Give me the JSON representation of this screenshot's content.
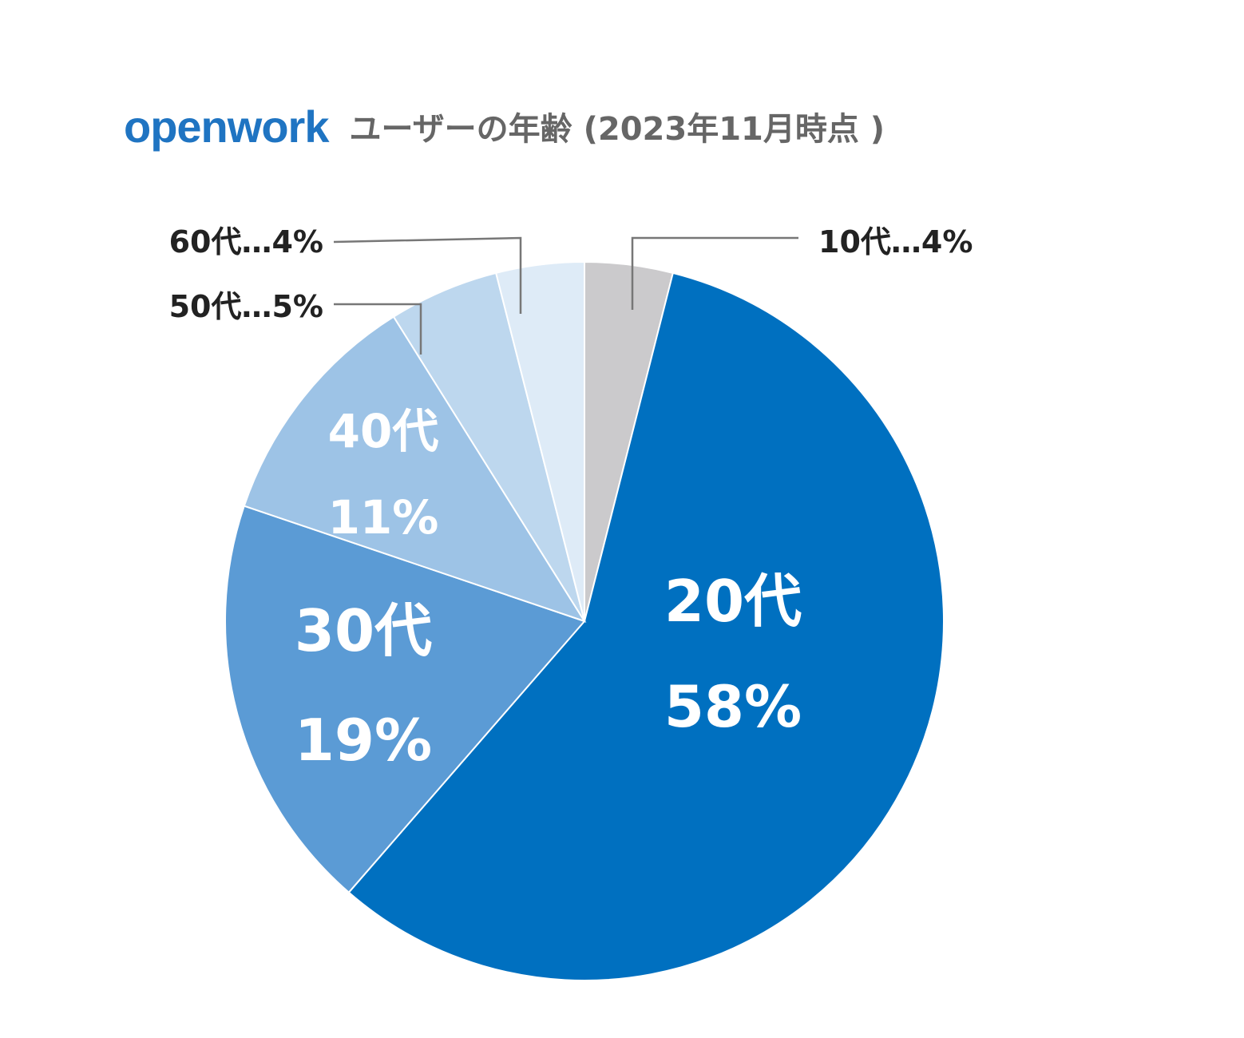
{
  "header": {
    "brand": "openwork",
    "title": "ユーザーの年齢 (2023年11月時点 )"
  },
  "colors": {
    "brand": "#1f74c2",
    "leader_line": "#777777",
    "outer_label_text": "#222222",
    "inner_label_text": "#ffffff"
  },
  "chart_data": {
    "type": "pie",
    "title": "ユーザーの年齢 (2023年11月時点 )",
    "start": "12 o'clock, clockwise",
    "slices": [
      {
        "key": "10",
        "category": "10代",
        "value": 4,
        "percent_label": "4%",
        "label_style": "outside",
        "label_text": "10代…4%",
        "color": "#cbcacc"
      },
      {
        "key": "20",
        "category": "20代",
        "value": 58,
        "percent_label": "58%",
        "label_style": "inside",
        "label_text": "20代",
        "value_text": "58%",
        "color": "#0070c0"
      },
      {
        "key": "30",
        "category": "30代",
        "value": 19,
        "percent_label": "19%",
        "label_style": "inside",
        "label_text": "30代",
        "value_text": "19%",
        "color": "#5b9bd5"
      },
      {
        "key": "40",
        "category": "40代",
        "value": 11,
        "percent_label": "11%",
        "label_style": "inside",
        "label_text": "40代",
        "value_text": "11%",
        "color": "#9dc3e6"
      },
      {
        "key": "50",
        "category": "50代",
        "value": 5,
        "percent_label": "5%",
        "label_style": "outside",
        "label_text": "50代…5%",
        "color": "#bdd7ee"
      },
      {
        "key": "60",
        "category": "60代",
        "value": 4,
        "percent_label": "4%",
        "label_style": "outside",
        "label_text": "60代…4%",
        "color": "#deebf7"
      }
    ]
  }
}
